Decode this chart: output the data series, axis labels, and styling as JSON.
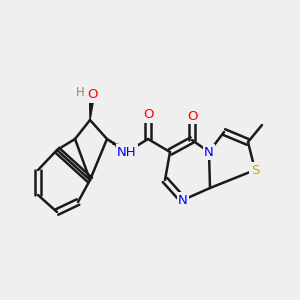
{
  "background_color": "#efefef",
  "bond_color": "#1a1a1a",
  "bond_lw": 1.8,
  "atom_colors": {
    "O": "#ff0000",
    "N": "#0000ff",
    "S": "#ccaa00",
    "C": "#1a1a1a",
    "H": "#888888"
  },
  "font_size": 9.5
}
